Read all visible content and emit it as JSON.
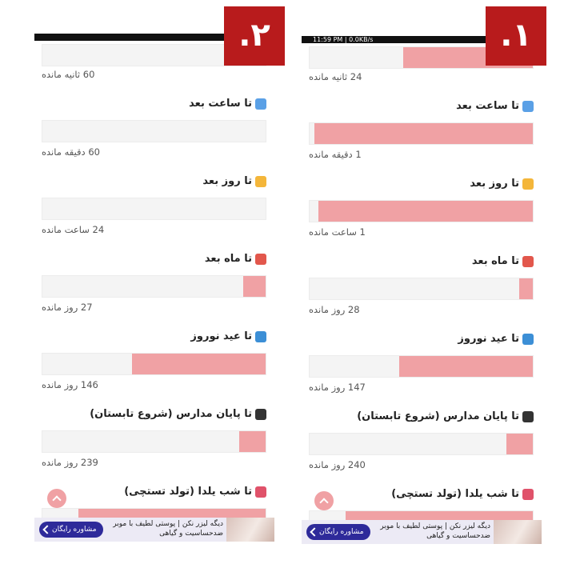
{
  "panels": [
    {
      "badge": ".۲",
      "rows": [
        {
          "progress": 0,
          "remaining": "60 ثانیه مانده"
        },
        {
          "label": "تا ساعت بعد",
          "progress": 0,
          "remaining": "60 دقیقه مانده"
        },
        {
          "label": "تا روز بعد",
          "progress": 0,
          "remaining": "24 ساعت مانده"
        },
        {
          "label": "تا ماه بعد",
          "progress": 0.1,
          "remaining": "27 روز مانده"
        },
        {
          "label": "تا عید نوروز",
          "progress": 0.6,
          "remaining": "146 روز مانده"
        },
        {
          "label": "تا پایان مدارس (شروع تابستان)",
          "progress": 0.12,
          "remaining": "239 روز مانده"
        },
        {
          "label": "تا شب یلدا (تولد تستچی)",
          "progress": 0.84
        }
      ],
      "ad": {
        "text": "دیگه لیزر نکن | پوستی لطیف با موبر ضدحساسیت و گیاهی",
        "button": "مشاوره رایگان"
      }
    },
    {
      "badge": ".۱",
      "status": "11:59 PM | 0.0KB/s",
      "rows": [
        {
          "progress": 0.58,
          "remaining": "24 ثانیه مانده"
        },
        {
          "label": "تا ساعت بعد",
          "progress": 0.98,
          "remaining": "1 دقیقه مانده"
        },
        {
          "label": "تا روز بعد",
          "progress": 0.96,
          "remaining": "1 ساعت مانده"
        },
        {
          "label": "تا ماه بعد",
          "progress": 0.06,
          "remaining": "28 روز مانده"
        },
        {
          "label": "تا عید نوروز",
          "progress": 0.6,
          "remaining": "147 روز مانده"
        },
        {
          "label": "تا پایان مدارس (شروع تابستان)",
          "progress": 0.12,
          "remaining": "240 روز مانده"
        },
        {
          "label": "تا شب یلدا (تولد تستچی)",
          "progress": 0.84
        }
      ],
      "ad": {
        "text": "دیگه لیزر نکن | پوستی لطیف با موبر ضدحساسیت و گیاهی",
        "button": "مشاوره رایگان"
      }
    }
  ]
}
